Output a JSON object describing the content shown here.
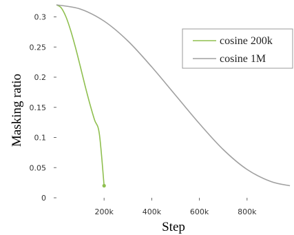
{
  "chart_data": {
    "type": "line",
    "title": "",
    "xlabel": "Step",
    "ylabel": "Masking ratio",
    "xlim": [
      0,
      1000000
    ],
    "ylim": [
      0,
      0.32
    ],
    "xticks": [
      {
        "value": 200000,
        "label": "200k"
      },
      {
        "value": 400000,
        "label": "400k"
      },
      {
        "value": 600000,
        "label": "600k"
      },
      {
        "value": 800000,
        "label": "800k"
      }
    ],
    "yticks": [
      {
        "value": 0,
        "label": "0"
      },
      {
        "value": 0.05,
        "label": "0.05"
      },
      {
        "value": 0.1,
        "label": "0.1"
      },
      {
        "value": 0.15,
        "label": "0.15"
      },
      {
        "value": 0.2,
        "label": "0.2"
      },
      {
        "value": 0.25,
        "label": "0.25"
      },
      {
        "value": 0.3,
        "label": "0.3"
      }
    ],
    "grid": false,
    "legend_position": "top-right",
    "series": [
      {
        "name": "cosine 200k",
        "color": "#8fbf4f",
        "end_marker": true,
        "x": [
          0,
          20000,
          40000,
          60000,
          80000,
          100000,
          120000,
          140000,
          160000,
          180000,
          200000
        ],
        "y": [
          0.32,
          0.315,
          0.3,
          0.277,
          0.249,
          0.218,
          0.186,
          0.156,
          0.129,
          0.106,
          0.02
        ]
      },
      {
        "name": "cosine 1M",
        "color": "#a0a0a0",
        "end_marker": false,
        "x": [
          0,
          100000,
          200000,
          300000,
          400000,
          500000,
          600000,
          700000,
          800000,
          900000,
          980000
        ],
        "y": [
          0.32,
          0.313,
          0.293,
          0.26,
          0.217,
          0.17,
          0.123,
          0.08,
          0.047,
          0.027,
          0.02
        ]
      }
    ]
  }
}
